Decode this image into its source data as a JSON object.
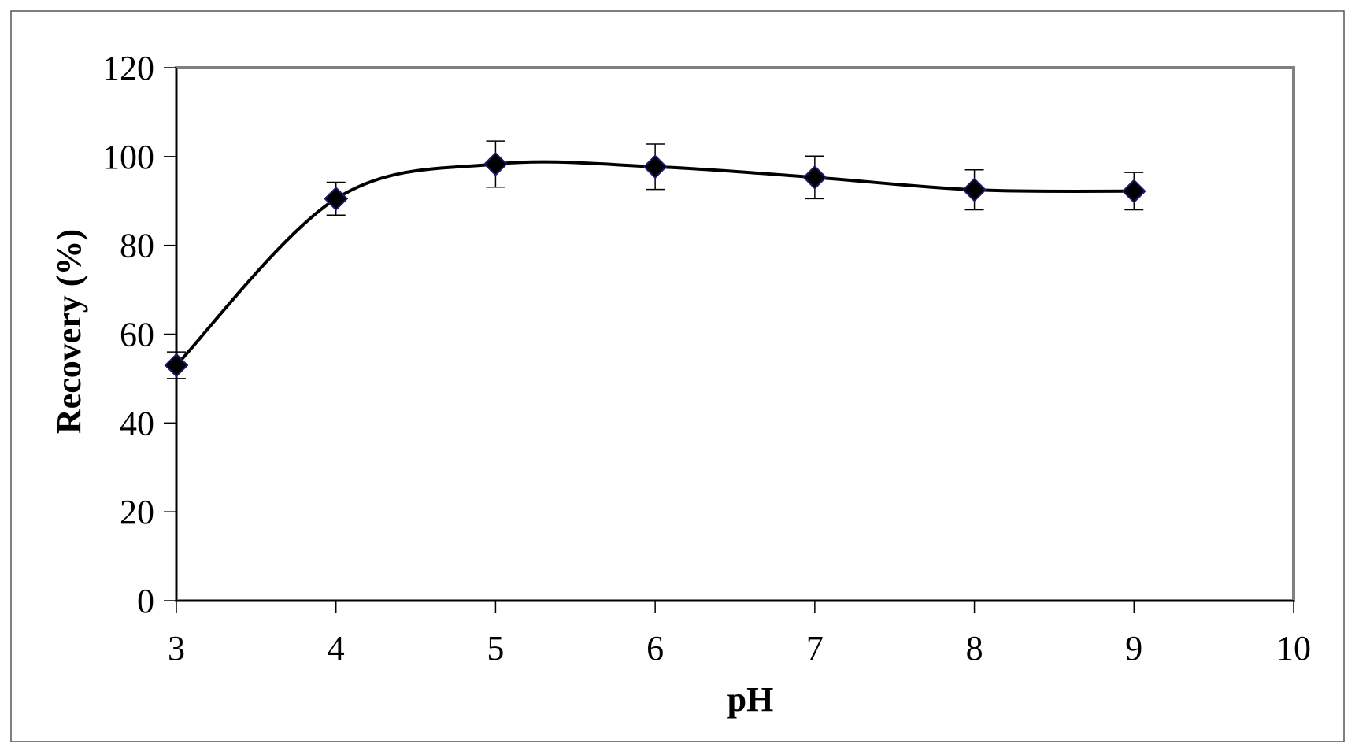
{
  "chart_data": {
    "type": "line",
    "title": "",
    "xlabel": "pH",
    "ylabel": "Recovery (%)",
    "xlim": [
      3,
      10
    ],
    "ylim": [
      0,
      120
    ],
    "x_ticks": [
      3,
      4,
      5,
      6,
      7,
      8,
      9,
      10
    ],
    "y_ticks": [
      0,
      20,
      40,
      60,
      80,
      100,
      120
    ],
    "grid": false,
    "legend": "none",
    "series": [
      {
        "x": [
          3,
          4,
          5,
          6,
          7,
          8,
          9
        ],
        "y": [
          53,
          90.5,
          98.3,
          97.7,
          95.3,
          92.5,
          92.2
        ],
        "error": [
          3,
          3.7,
          5.2,
          5.1,
          4.8,
          4.5,
          4.2
        ],
        "marker": "diamond",
        "line_style": "smooth",
        "color": "#000000",
        "marker_edge_color": "#1a1a6e"
      }
    ],
    "colors": {
      "plot_border": "#808080",
      "axis": "#000000",
      "frame": "#555555"
    }
  }
}
